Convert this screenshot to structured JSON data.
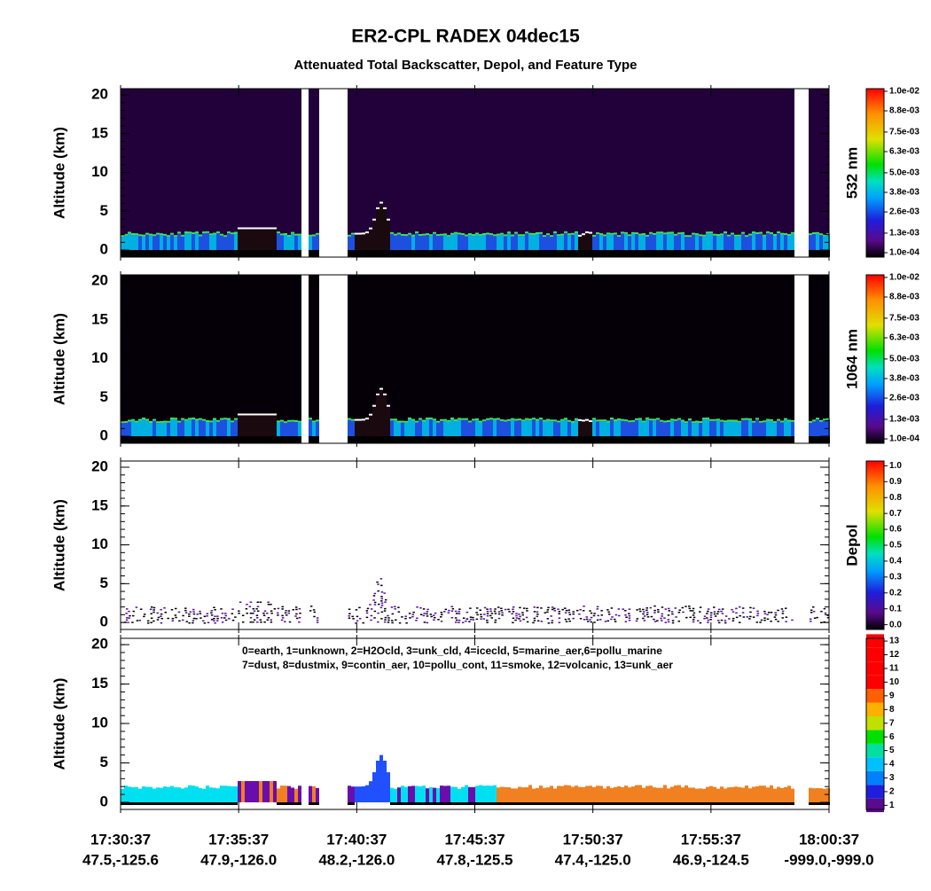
{
  "title": "ER2-CPL RADEX 04dec15",
  "subtitle": "Attenuated Total Backscatter, Depol, and Feature Type",
  "x_axis": {
    "ticks": [
      "17:30:37",
      "17:35:37",
      "17:40:37",
      "17:45:37",
      "17:50:37",
      "17:55:37",
      "18:00:37"
    ],
    "sublabels": [
      "47.5,-125.6",
      "47.9,-126.0",
      "48.2,-126.0",
      "47.8,-125.5",
      "47.4,-125.0",
      "46.9,-124.5",
      "-999.0,-999.0"
    ]
  },
  "chart_data": [
    {
      "type": "heatmap",
      "ylabel": "Altitude (km)",
      "colorbar_label": "532 nm",
      "ylim": [
        -0.9,
        20.8
      ],
      "yticks": [
        0,
        5,
        10,
        15,
        20
      ],
      "clim": [
        -0.00017,
        0.01016
      ],
      "cticks": [
        {
          "value": 0.0001,
          "label": "1.0e-04"
        },
        {
          "value": 0.0013,
          "label": "1.3e-03"
        },
        {
          "value": 0.0026,
          "label": "2.6e-03"
        },
        {
          "value": 0.0038,
          "label": "3.8e-03"
        },
        {
          "value": 0.005,
          "label": "5.0e-03"
        },
        {
          "value": 0.0063,
          "label": "6.3e-03"
        },
        {
          "value": 0.0075,
          "label": "7.5e-03"
        },
        {
          "value": 0.0088,
          "label": "8.8e-03"
        },
        {
          "value": 0.01,
          "label": "1.0e-02"
        }
      ]
    },
    {
      "type": "heatmap",
      "ylabel": "Altitude (km)",
      "colorbar_label": "1064 nm",
      "ylim": [
        -0.9,
        20.8
      ],
      "yticks": [
        0,
        5,
        10,
        15,
        20
      ],
      "clim": [
        -0.00017,
        0.01016
      ],
      "cticks": [
        {
          "value": 0.0001,
          "label": "1.0e-04"
        },
        {
          "value": 0.0013,
          "label": "1.3e-03"
        },
        {
          "value": 0.0026,
          "label": "2.6e-03"
        },
        {
          "value": 0.0038,
          "label": "3.8e-03"
        },
        {
          "value": 0.005,
          "label": "5.0e-03"
        },
        {
          "value": 0.0063,
          "label": "6.3e-03"
        },
        {
          "value": 0.0075,
          "label": "7.5e-03"
        },
        {
          "value": 0.0088,
          "label": "8.8e-03"
        },
        {
          "value": 0.01,
          "label": "1.0e-02"
        }
      ]
    },
    {
      "type": "depol",
      "ylabel": "Altitude (km)",
      "colorbar_label": "Depol",
      "ylim": [
        -0.9,
        20.8
      ],
      "yticks": [
        0,
        5,
        10,
        15,
        20
      ],
      "clim": [
        -0.03,
        1.03
      ],
      "cticks": [
        {
          "value": 0,
          "label": "0.0"
        },
        0.1,
        0.2,
        0.3,
        0.4,
        0.5,
        0.6,
        0.7,
        0.8,
        0.9,
        {
          "value": 1,
          "label": "1.0"
        }
      ]
    },
    {
      "type": "feature",
      "ylabel": "Altitude (km)",
      "ylim": [
        -0.9,
        20.8
      ],
      "yticks": [
        0,
        5,
        10,
        15,
        20
      ],
      "annotations": [
        "0=earth, 1=unknown, 2=H2Ocld, 3=unk_cld, 4=icecld, 5=marine_aer,6=pollu_marine",
        "7=dust, 8=dustmix, 9=contin_aer, 10=pollu_cont, 11=smoke, 12=volcanic, 13=unk_aer"
      ],
      "clim": [
        0.7,
        13.2
      ],
      "cticks": [
        1,
        2,
        3,
        4,
        5,
        6,
        7,
        8,
        9,
        10,
        11,
        12,
        13
      ]
    }
  ]
}
